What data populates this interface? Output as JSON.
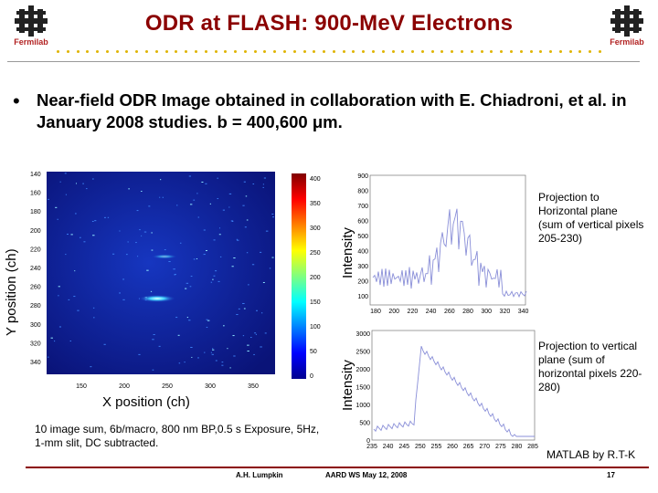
{
  "slide": {
    "title": "ODR at FLASH: 900-MeV Electrons",
    "logo_text": "Fermilab",
    "bullet": "Near-field ODR Image obtained in collaboration with E. Chiadroni, et al. in January 2008 studies. b = 400,600 μm."
  },
  "image_panel": {
    "y_ticks": [
      "140",
      "160",
      "180",
      "200",
      "220",
      "240",
      "260",
      "280",
      "300",
      "320",
      "340"
    ],
    "x_ticks": [
      "150",
      "200",
      "250",
      "300",
      "350"
    ],
    "colorbar_ticks": [
      "400",
      "350",
      "300",
      "250",
      "200",
      "150",
      "100",
      "50",
      "0"
    ],
    "xlabel": "X position (ch)",
    "ylabel": "Y position (ch)"
  },
  "plot_top": {
    "ylabel": "Intensity",
    "y_ticks": [
      "900",
      "800",
      "700",
      "600",
      "500",
      "400",
      "300",
      "200",
      "100"
    ],
    "x_ticks": [
      "180",
      "200",
      "220",
      "240",
      "260",
      "280",
      "300",
      "320",
      "340"
    ],
    "caption": "Projection to Horizontal plane (sum of vertical pixels 205-230)"
  },
  "plot_bottom": {
    "ylabel": "Intensity",
    "y_ticks": [
      "3000",
      "2500",
      "2000",
      "1500",
      "1000",
      "500",
      "0"
    ],
    "x_ticks": [
      "235",
      "240",
      "245",
      "250",
      "255",
      "260",
      "265",
      "270",
      "275",
      "280",
      "285"
    ],
    "caption": "Projection to vertical plane (sum of horizontal pixels 220-280)"
  },
  "notes": {
    "exposure": "10 image sum, 6b/macro, 800 nm BP,0.5 s Exposure, 5Hz, 1-mm slit, DC subtracted.",
    "credit": "MATLAB by R.T-K"
  },
  "footer": {
    "author": "A.H. Lumpkin",
    "event": "AARD WS May 12, 2008",
    "page": "17"
  }
}
